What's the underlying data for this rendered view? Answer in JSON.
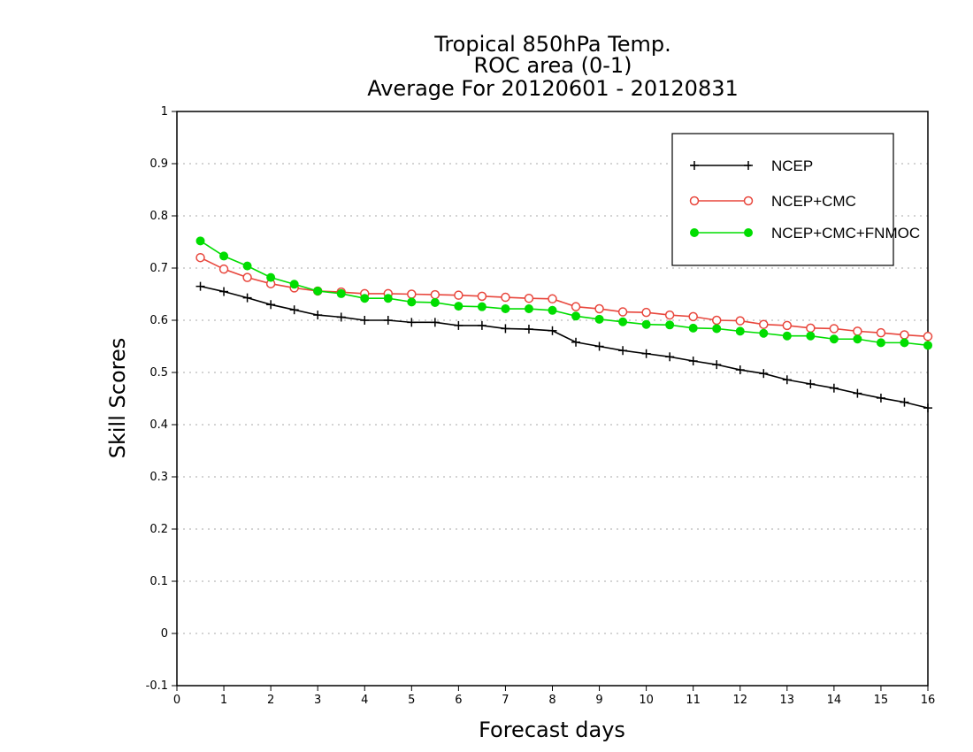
{
  "chart_data": {
    "type": "line",
    "title": [
      "Tropical 850hPa Temp.",
      "ROC area (0-1)",
      "Average For 20120601 - 20120831"
    ],
    "xlabel": "Forecast days",
    "ylabel": "Skill Scores",
    "xlim": [
      0,
      16
    ],
    "ylim": [
      -0.1,
      1
    ],
    "xticks": [
      "0",
      "1",
      "2",
      "3",
      "4",
      "5",
      "6",
      "7",
      "8",
      "9",
      "10",
      "11",
      "12",
      "13",
      "14",
      "15",
      "16"
    ],
    "yticks": [
      "-0.1",
      "0",
      "0.1",
      "0.2",
      "0.3",
      "0.4",
      "0.5",
      "0.6",
      "0.7",
      "0.8",
      "0.9",
      "1"
    ],
    "grid": "horizontal dotted",
    "legend_position": "top-right",
    "x": [
      0.5,
      1.0,
      1.5,
      2.0,
      2.5,
      3.0,
      3.5,
      4.0,
      4.5,
      5.0,
      5.5,
      6.0,
      6.5,
      7.0,
      7.5,
      8.0,
      8.5,
      9.0,
      9.5,
      10.0,
      10.5,
      11.0,
      11.5,
      12.0,
      12.5,
      13.0,
      13.5,
      14.0,
      14.5,
      15.0,
      15.5,
      16.0
    ],
    "series": [
      {
        "name": "NCEP",
        "color": "#000000",
        "marker": "plus",
        "values": [
          0.665,
          0.655,
          0.643,
          0.63,
          0.62,
          0.61,
          0.606,
          0.6,
          0.6,
          0.596,
          0.596,
          0.59,
          0.59,
          0.584,
          0.583,
          0.58,
          0.558,
          0.55,
          0.542,
          0.536,
          0.53,
          0.522,
          0.515,
          0.505,
          0.498,
          0.486,
          0.478,
          0.47,
          0.46,
          0.451,
          0.443,
          0.432
        ]
      },
      {
        "name": "NCEP+CMC",
        "color": "#e8463c",
        "marker": "open-circle",
        "values": [
          0.72,
          0.698,
          0.682,
          0.67,
          0.662,
          0.656,
          0.654,
          0.651,
          0.651,
          0.65,
          0.649,
          0.648,
          0.646,
          0.644,
          0.642,
          0.641,
          0.626,
          0.622,
          0.616,
          0.615,
          0.61,
          0.607,
          0.6,
          0.599,
          0.592,
          0.59,
          0.585,
          0.584,
          0.579,
          0.576,
          0.572,
          0.569
        ]
      },
      {
        "name": "NCEP+CMC+FNMOC",
        "color": "#00dd00",
        "marker": "filled-circle",
        "values": [
          0.752,
          0.723,
          0.704,
          0.682,
          0.669,
          0.656,
          0.651,
          0.642,
          0.642,
          0.635,
          0.634,
          0.627,
          0.626,
          0.622,
          0.622,
          0.619,
          0.608,
          0.602,
          0.597,
          0.592,
          0.591,
          0.585,
          0.584,
          0.579,
          0.575,
          0.57,
          0.57,
          0.564,
          0.564,
          0.557,
          0.557,
          0.552
        ]
      }
    ]
  }
}
